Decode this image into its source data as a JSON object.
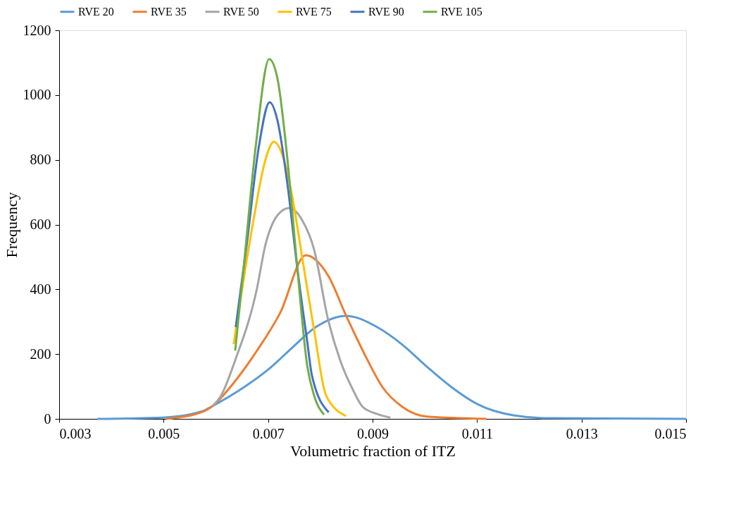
{
  "chart_data": {
    "type": "line",
    "xlabel": "Volumetric fraction of ITZ",
    "ylabel": "Frequency",
    "xlim": [
      0.003,
      0.015
    ],
    "xticks": [
      0.003,
      0.005,
      0.007,
      0.009,
      0.011,
      0.013,
      0.015
    ],
    "ylim": [
      0,
      1200
    ],
    "yticks": [
      0,
      200,
      400,
      600,
      800,
      1000,
      1200
    ],
    "grid": false,
    "legend": "top",
    "marker": "none",
    "line_style": "solid",
    "series": [
      {
        "name": "RVE 20",
        "color": "#5b9bd5",
        "x": [
          0.00373,
          0.00498,
          0.00575,
          0.00593,
          0.00656,
          0.007,
          0.00745,
          0.00791,
          0.00849,
          0.00909,
          0.00957,
          0.01004,
          0.01051,
          0.011,
          0.0117,
          0.0124,
          0.015
        ],
        "values": [
          0,
          4,
          24,
          39,
          100,
          152,
          218,
          283,
          318,
          283,
          229,
          161,
          98,
          46,
          11,
          2,
          0
        ]
      },
      {
        "name": "RVE 35",
        "color": "#ed7d31",
        "x": [
          0.00505,
          0.00575,
          0.00593,
          0.00633,
          0.00678,
          0.00723,
          0.00772,
          0.00815,
          0.00849,
          0.00887,
          0.00919,
          0.00957,
          0.01004,
          0.01118
        ],
        "values": [
          0,
          22,
          39,
          109,
          209,
          327,
          505,
          442,
          320,
          192,
          98,
          37,
          7,
          0
        ]
      },
      {
        "name": "RVE 50",
        "color": "#a5a5a5",
        "x": [
          0.00593,
          0.0061,
          0.00637,
          0.00678,
          0.00695,
          0.00718,
          0.0074,
          0.00765,
          0.00788,
          0.00815,
          0.00839,
          0.00862,
          0.00881,
          0.00909,
          0.00934
        ],
        "values": [
          39,
          72,
          181,
          398,
          538,
          629,
          651,
          614,
          523,
          305,
          176,
          91,
          37,
          15,
          4
        ]
      },
      {
        "name": "RVE 75",
        "color": "#ffc000",
        "x": [
          0.00634,
          0.00649,
          0.00672,
          0.00695,
          0.00711,
          0.00727,
          0.00746,
          0.00765,
          0.00788,
          0.00811,
          0.00849
        ],
        "values": [
          231,
          388,
          614,
          801,
          856,
          817,
          688,
          501,
          274,
          72,
          9
        ]
      },
      {
        "name": "RVE 90",
        "color": "#4472c4",
        "x": [
          0.00638,
          0.00659,
          0.00682,
          0.00703,
          0.00718,
          0.00737,
          0.00756,
          0.00775,
          0.00784,
          0.00816
        ],
        "values": [
          283,
          538,
          838,
          978,
          921,
          725,
          464,
          237,
          133,
          20
        ]
      },
      {
        "name": "RVE 105",
        "color": "#70ad47",
        "x": [
          0.00637,
          0.00653,
          0.00676,
          0.00702,
          0.00718,
          0.00737,
          0.00756,
          0.00775,
          0.00788,
          0.00807
        ],
        "values": [
          211,
          464,
          838,
          1111,
          1050,
          801,
          464,
          163,
          72,
          13
        ]
      }
    ]
  }
}
